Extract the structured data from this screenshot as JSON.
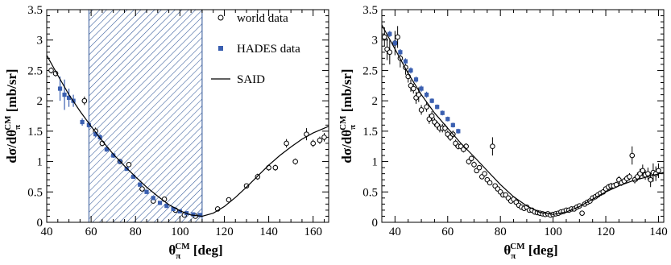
{
  "chart_data": [
    {
      "type": "scatter",
      "xlabel": {
        "main": "θ",
        "sub": "π",
        "sup": "CM",
        "unit": "[deg]"
      },
      "ylabel": {
        "pre": "dσ/dθ",
        "sub": "π",
        "sup": "CM",
        "unit": "[mb/sr]"
      },
      "xlim": [
        40,
        167
      ],
      "ylim": [
        0,
        3.5
      ],
      "xticks": [
        40,
        60,
        80,
        100,
        120,
        140,
        160
      ],
      "yticks": [
        0,
        0.5,
        1,
        1.5,
        2,
        2.5,
        3,
        3.5
      ],
      "ytick_labels": [
        "0",
        "0.5",
        "1",
        "1.5",
        "2",
        "2.5",
        "3",
        "3.5"
      ],
      "shaded_region": [
        59,
        110
      ],
      "legend": [
        {
          "label": "world data",
          "marker": "open-circle"
        },
        {
          "label": "HADES data",
          "marker": "filled-square"
        },
        {
          "label": "SAID",
          "marker": "line"
        }
      ],
      "series": [
        {
          "name": "world data",
          "x": [
            42,
            44,
            57,
            62,
            65,
            73,
            77,
            83,
            88,
            93,
            98,
            102,
            107,
            117,
            122,
            130,
            135,
            140,
            143,
            148,
            152,
            157,
            160,
            163,
            165
          ],
          "y": [
            2.5,
            2.45,
            2.0,
            1.5,
            1.3,
            1.0,
            0.95,
            0.55,
            0.35,
            0.38,
            0.2,
            0.12,
            0.1,
            0.22,
            0.37,
            0.6,
            0.75,
            0.9,
            0.9,
            1.3,
            1.0,
            1.45,
            1.3,
            1.35,
            1.4
          ],
          "err": [
            0.05,
            0.05,
            0.07,
            0.06,
            0.05,
            0.04,
            0.04,
            0.04,
            0.03,
            0.03,
            0.02,
            0.02,
            0.02,
            0.04,
            0.04,
            0.04,
            0.05,
            0.05,
            0.05,
            0.07,
            0.05,
            0.1,
            0.06,
            0.06,
            0.07
          ]
        },
        {
          "name": "HADES data",
          "x": [
            46,
            48,
            50,
            52,
            56,
            59,
            62,
            64,
            67,
            70,
            73,
            76,
            79,
            82,
            85,
            88,
            91,
            94,
            97,
            100,
            103,
            106,
            109
          ],
          "y": [
            2.2,
            2.1,
            2.05,
            2.0,
            1.65,
            1.6,
            1.45,
            1.4,
            1.2,
            1.1,
            1.0,
            0.88,
            0.75,
            0.62,
            0.5,
            0.4,
            0.32,
            0.27,
            0.22,
            0.18,
            0.15,
            0.13,
            0.12
          ],
          "err": [
            0.2,
            0.25,
            0.15,
            0.1,
            0.06,
            0.05,
            0.05,
            0.05,
            0.04,
            0.04,
            0.04,
            0.03,
            0.03,
            0.03,
            0.03,
            0.02,
            0.02,
            0.02,
            0.02,
            0.02,
            0.02,
            0.02,
            0.02
          ]
        },
        {
          "name": "SAID",
          "x": [
            40,
            45,
            50,
            55,
            60,
            65,
            70,
            75,
            80,
            85,
            90,
            95,
            100,
            105,
            110,
            115,
            120,
            125,
            130,
            135,
            140,
            145,
            150,
            155,
            160,
            167
          ],
          "y": [
            2.75,
            2.42,
            2.1,
            1.83,
            1.58,
            1.34,
            1.12,
            0.93,
            0.75,
            0.58,
            0.43,
            0.29,
            0.19,
            0.12,
            0.1,
            0.15,
            0.26,
            0.41,
            0.58,
            0.76,
            0.94,
            1.1,
            1.24,
            1.37,
            1.47,
            1.58
          ]
        }
      ]
    },
    {
      "type": "scatter",
      "xlabel": {
        "main": "θ",
        "sub": "π",
        "sup": "CM",
        "unit": "[deg]"
      },
      "ylabel": {
        "pre": "dσ/dθ",
        "sub": "π",
        "sup": "CM",
        "unit": "[mb/sr]"
      },
      "xlim": [
        35,
        142
      ],
      "ylim": [
        0,
        3.5
      ],
      "xticks": [
        40,
        60,
        80,
        100,
        120,
        140
      ],
      "yticks": [
        0,
        0.5,
        1,
        1.5,
        2,
        2.5,
        3,
        3.5
      ],
      "ytick_labels": [
        "0",
        "0.5",
        "1",
        "1.5",
        "2",
        "2.5",
        "3",
        "3.5"
      ],
      "series": [
        {
          "name": "world data",
          "x": [
            36,
            37,
            38,
            40,
            41,
            42,
            44,
            45,
            46,
            47,
            48,
            49,
            50,
            52,
            53,
            54,
            55,
            56,
            57,
            58,
            59,
            60,
            61,
            62,
            63,
            64,
            65,
            66,
            67,
            68,
            69,
            70,
            71,
            72,
            73,
            74,
            75,
            76,
            77,
            78,
            79,
            80,
            81,
            82,
            83,
            84,
            85,
            86,
            87,
            88,
            89,
            90,
            91,
            92,
            93,
            94,
            95,
            96,
            97,
            98,
            99,
            100,
            101,
            102,
            103,
            104,
            105,
            106,
            107,
            108,
            109,
            110,
            111,
            112,
            113,
            114,
            115,
            116,
            117,
            118,
            119,
            120,
            121,
            122,
            123,
            124,
            125,
            126,
            127,
            128,
            129,
            130,
            131,
            132,
            133,
            134,
            135,
            136,
            137,
            138,
            139,
            140
          ],
          "y": [
            3.05,
            2.85,
            2.8,
            2.95,
            3.05,
            2.7,
            2.55,
            2.4,
            2.25,
            2.2,
            2.05,
            2.1,
            1.85,
            1.9,
            1.7,
            1.75,
            1.65,
            1.6,
            1.55,
            1.55,
            1.55,
            1.45,
            1.4,
            1.45,
            1.3,
            1.25,
            1.25,
            1.2,
            1.25,
            1.0,
            1.05,
            0.95,
            0.85,
            0.9,
            0.75,
            0.8,
            0.7,
            0.65,
            1.25,
            0.6,
            0.55,
            0.5,
            0.45,
            0.45,
            0.4,
            0.35,
            0.38,
            0.33,
            0.28,
            0.25,
            0.23,
            0.25,
            0.2,
            0.2,
            0.17,
            0.16,
            0.15,
            0.14,
            0.13,
            0.14,
            0.12,
            0.13,
            0.14,
            0.15,
            0.17,
            0.18,
            0.2,
            0.2,
            0.22,
            0.22,
            0.25,
            0.27,
            0.15,
            0.3,
            0.33,
            0.35,
            0.4,
            0.42,
            0.45,
            0.48,
            0.5,
            0.55,
            0.58,
            0.6,
            0.6,
            0.62,
            0.7,
            0.65,
            0.68,
            0.72,
            0.75,
            1.1,
            0.7,
            0.75,
            0.8,
            0.85,
            0.78,
            0.8,
            0.7,
            0.82,
            0.8,
            0.85
          ],
          "err": [
            0.15,
            0.18,
            0.2,
            0.2,
            0.18,
            0.15,
            0.12,
            0.1,
            0.1,
            0.08,
            0.1,
            0.12,
            0.08,
            0.08,
            0.08,
            0.08,
            0.07,
            0.07,
            0.07,
            0.07,
            0.07,
            0.06,
            0.06,
            0.06,
            0.06,
            0.05,
            0.05,
            0.05,
            0.05,
            0.05,
            0.05,
            0.05,
            0.04,
            0.04,
            0.04,
            0.04,
            0.04,
            0.04,
            0.15,
            0.04,
            0.04,
            0.03,
            0.03,
            0.03,
            0.03,
            0.03,
            0.03,
            0.03,
            0.03,
            0.02,
            0.02,
            0.02,
            0.02,
            0.02,
            0.02,
            0.02,
            0.02,
            0.02,
            0.02,
            0.02,
            0.02,
            0.02,
            0.02,
            0.02,
            0.02,
            0.02,
            0.02,
            0.02,
            0.02,
            0.02,
            0.03,
            0.03,
            0.03,
            0.03,
            0.03,
            0.03,
            0.03,
            0.04,
            0.04,
            0.04,
            0.04,
            0.04,
            0.05,
            0.05,
            0.05,
            0.05,
            0.06,
            0.05,
            0.05,
            0.06,
            0.06,
            0.15,
            0.06,
            0.07,
            0.08,
            0.1,
            0.08,
            0.1,
            0.12,
            0.15,
            0.12,
            0.12
          ]
        },
        {
          "name": "HADES data",
          "x": [
            38,
            40,
            42,
            44,
            46,
            48,
            50,
            52,
            54,
            56,
            58,
            60,
            62,
            64
          ],
          "y": [
            3.1,
            2.95,
            2.8,
            2.65,
            2.5,
            2.35,
            2.2,
            2.1,
            2.0,
            1.9,
            1.8,
            1.7,
            1.6,
            1.5
          ],
          "err": [
            0.05,
            0.05,
            0.05,
            0.05,
            0.05,
            0.05,
            0.05,
            0.05,
            0.04,
            0.04,
            0.04,
            0.04,
            0.04,
            0.04
          ]
        },
        {
          "name": "SAID",
          "x": [
            35,
            40,
            45,
            50,
            55,
            60,
            65,
            70,
            75,
            80,
            85,
            90,
            95,
            100,
            105,
            110,
            115,
            120,
            125,
            130,
            135,
            142
          ],
          "y": [
            3.25,
            2.85,
            2.45,
            2.1,
            1.8,
            1.55,
            1.3,
            1.08,
            0.85,
            0.62,
            0.42,
            0.27,
            0.16,
            0.13,
            0.17,
            0.26,
            0.38,
            0.5,
            0.6,
            0.68,
            0.74,
            0.82
          ]
        }
      ]
    }
  ]
}
